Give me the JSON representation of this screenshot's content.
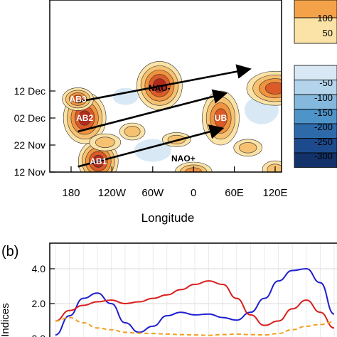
{
  "chart_data": [
    {
      "type": "heatmap",
      "panel_label": "",
      "xlabel": "Longitude",
      "ylabel": "",
      "x_ticks": [
        "180",
        "120W",
        "60W",
        "0",
        "60E",
        "120E"
      ],
      "y_ticks": [
        "12 Dec",
        "02 Dec",
        "22 Nov",
        "12 Nov"
      ],
      "colorbar": {
        "levels": [
          "100",
          "50",
          "-50",
          "-100",
          "-150",
          "-200",
          "-250",
          "-300"
        ],
        "positive_colors": [
          "#f4a24a",
          "#fbe2a6"
        ],
        "negative_colors": [
          "#d8e9f5",
          "#b4d4ec",
          "#84b8dc",
          "#4f94c8",
          "#2d6aaa",
          "#1d4a8c",
          "#13326a"
        ]
      },
      "features": [
        {
          "label": "AB3",
          "lon": -170,
          "date": "09 Dec"
        },
        {
          "label": "NAO-",
          "lon": -50,
          "date": "13 Dec"
        },
        {
          "label": "AB2",
          "lon": -160,
          "date": "02 Dec"
        },
        {
          "label": "UB",
          "lon": 40,
          "date": "02 Dec"
        },
        {
          "label": "AB1",
          "lon": -140,
          "date": "16 Nov"
        },
        {
          "label": "NAO+",
          "lon": -15,
          "date": "17 Nov"
        }
      ],
      "arrows": [
        {
          "from": {
            "lon": -170,
            "date": "14 Nov"
          },
          "to": {
            "lon": 40,
            "date": "28 Nov"
          }
        },
        {
          "from": {
            "lon": -170,
            "date": "27 Nov"
          },
          "to": {
            "lon": 45,
            "date": "11 Dec"
          }
        },
        {
          "from": {
            "lon": -170,
            "date": "08 Dec"
          },
          "to": {
            "lon": 80,
            "date": "20 Dec"
          }
        }
      ]
    },
    {
      "type": "line",
      "panel_label": "(b)",
      "ylabel": "Indices",
      "y_ticks": [
        "4.0",
        "2.0",
        "0.0"
      ],
      "ylim": [
        0,
        4.6
      ],
      "x": [
        0,
        2,
        4,
        6,
        8,
        10,
        12,
        14,
        16,
        18,
        20,
        22,
        24,
        26,
        28,
        30,
        32,
        34,
        36,
        38,
        40
      ],
      "series": [
        {
          "color": "#1f1fd0",
          "values": [
            0.2,
            1.3,
            2.3,
            2.6,
            2.0,
            0.9,
            0.35,
            0.7,
            1.3,
            1.5,
            1.35,
            1.4,
            1.2,
            1.05,
            1.5,
            2.3,
            3.3,
            3.9,
            4.0,
            3.2,
            1.4
          ]
        },
        {
          "color": "#d81e1e",
          "values": [
            1.0,
            1.6,
            1.9,
            2.1,
            2.2,
            2.0,
            2.1,
            2.3,
            2.5,
            2.8,
            3.1,
            3.3,
            3.1,
            2.3,
            1.35,
            0.75,
            1.0,
            1.7,
            2.2,
            1.5,
            0.6
          ]
        },
        {
          "color": "#f0a020",
          "dashed": true,
          "values": [
            1.0,
            1.2,
            0.9,
            0.6,
            0.5,
            0.35,
            0.3,
            0.28,
            0.25,
            0.22,
            0.2,
            0.18,
            0.22,
            0.25,
            0.22,
            0.2,
            0.28,
            0.5,
            0.7,
            0.8,
            0.95
          ]
        }
      ]
    }
  ]
}
